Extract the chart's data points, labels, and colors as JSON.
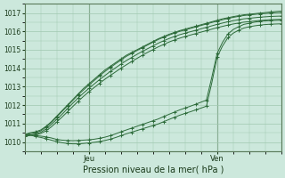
{
  "title": "",
  "xlabel": "Pression niveau de la mer( hPa )",
  "ylabel": "",
  "background_color": "#cce8dc",
  "grid_color": "#a0c8b0",
  "line_color": "#2d6b3a",
  "ylim": [
    1009.5,
    1017.5
  ],
  "xlim": [
    0,
    48
  ],
  "yticks": [
    1010,
    1011,
    1012,
    1013,
    1014,
    1015,
    1016,
    1017
  ],
  "xtick_jeu": 12,
  "xtick_ven": 36,
  "num_points": 49,
  "lines": [
    [
      1010.4,
      1010.5,
      1010.55,
      1010.65,
      1010.85,
      1011.1,
      1011.4,
      1011.7,
      1012.0,
      1012.3,
      1012.6,
      1012.9,
      1013.15,
      1013.4,
      1013.65,
      1013.9,
      1014.1,
      1014.3,
      1014.5,
      1014.7,
      1014.85,
      1015.0,
      1015.15,
      1015.3,
      1015.45,
      1015.6,
      1015.72,
      1015.84,
      1015.94,
      1016.04,
      1016.12,
      1016.2,
      1016.28,
      1016.36,
      1016.44,
      1016.52,
      1016.6,
      1016.68,
      1016.74,
      1016.8,
      1016.85,
      1016.9,
      1016.93,
      1016.96,
      1016.99,
      1017.02,
      1017.05,
      1017.08,
      1017.1
    ],
    [
      1010.35,
      1010.45,
      1010.5,
      1010.6,
      1010.8,
      1011.05,
      1011.35,
      1011.65,
      1011.95,
      1012.25,
      1012.55,
      1012.82,
      1013.08,
      1013.33,
      1013.58,
      1013.82,
      1014.03,
      1014.24,
      1014.44,
      1014.64,
      1014.8,
      1014.96,
      1015.11,
      1015.26,
      1015.41,
      1015.56,
      1015.68,
      1015.8,
      1015.9,
      1016.0,
      1016.08,
      1016.16,
      1016.24,
      1016.32,
      1016.4,
      1016.48,
      1016.56,
      1016.63,
      1016.7,
      1016.76,
      1016.81,
      1016.86,
      1016.89,
      1016.92,
      1016.95,
      1016.97,
      1016.99,
      1017.01,
      1017.02
    ],
    [
      1010.3,
      1010.38,
      1010.43,
      1010.52,
      1010.7,
      1010.95,
      1011.22,
      1011.5,
      1011.8,
      1012.1,
      1012.38,
      1012.65,
      1012.9,
      1013.14,
      1013.38,
      1013.6,
      1013.82,
      1014.02,
      1014.22,
      1014.41,
      1014.58,
      1014.75,
      1014.91,
      1015.06,
      1015.21,
      1015.36,
      1015.49,
      1015.61,
      1015.72,
      1015.82,
      1015.9,
      1015.98,
      1016.06,
      1016.14,
      1016.22,
      1016.3,
      1016.38,
      1016.45,
      1016.52,
      1016.58,
      1016.63,
      1016.68,
      1016.71,
      1016.74,
      1016.77,
      1016.79,
      1016.81,
      1016.82,
      1016.83
    ],
    [
      1010.3,
      1010.35,
      1010.38,
      1010.46,
      1010.6,
      1010.82,
      1011.08,
      1011.35,
      1011.63,
      1011.92,
      1012.2,
      1012.47,
      1012.72,
      1012.95,
      1013.18,
      1013.4,
      1013.6,
      1013.8,
      1014.0,
      1014.18,
      1014.36,
      1014.53,
      1014.7,
      1014.86,
      1015.01,
      1015.16,
      1015.29,
      1015.42,
      1015.53,
      1015.63,
      1015.72,
      1015.8,
      1015.88,
      1015.96,
      1016.04,
      1016.12,
      1016.2,
      1016.27,
      1016.34,
      1016.4,
      1016.45,
      1016.5,
      1016.53,
      1016.56,
      1016.59,
      1016.61,
      1016.63,
      1016.64,
      1016.65
    ],
    [
      1010.45,
      1010.4,
      1010.35,
      1010.32,
      1010.28,
      1010.22,
      1010.14,
      1010.1,
      1010.08,
      1010.07,
      1010.08,
      1010.1,
      1010.12,
      1010.15,
      1010.2,
      1010.26,
      1010.34,
      1010.44,
      1010.55,
      1010.65,
      1010.75,
      1010.85,
      1010.95,
      1011.05,
      1011.15,
      1011.25,
      1011.38,
      1011.5,
      1011.62,
      1011.74,
      1011.84,
      1011.94,
      1012.05,
      1012.16,
      1012.27,
      1013.5,
      1014.8,
      1015.4,
      1015.85,
      1016.1,
      1016.25,
      1016.38,
      1016.44,
      1016.5,
      1016.54,
      1016.57,
      1016.59,
      1016.6,
      1016.61
    ],
    [
      1010.45,
      1010.38,
      1010.3,
      1010.25,
      1010.18,
      1010.1,
      1010.02,
      1009.96,
      1009.92,
      1009.9,
      1009.9,
      1009.92,
      1009.95,
      1009.98,
      1010.02,
      1010.08,
      1010.15,
      1010.24,
      1010.34,
      1010.44,
      1010.53,
      1010.62,
      1010.71,
      1010.8,
      1010.89,
      1010.98,
      1011.1,
      1011.22,
      1011.34,
      1011.45,
      1011.55,
      1011.64,
      1011.74,
      1011.84,
      1011.94,
      1013.2,
      1014.6,
      1015.2,
      1015.65,
      1015.9,
      1016.06,
      1016.18,
      1016.25,
      1016.3,
      1016.34,
      1016.37,
      1016.39,
      1016.4,
      1016.41
    ]
  ]
}
